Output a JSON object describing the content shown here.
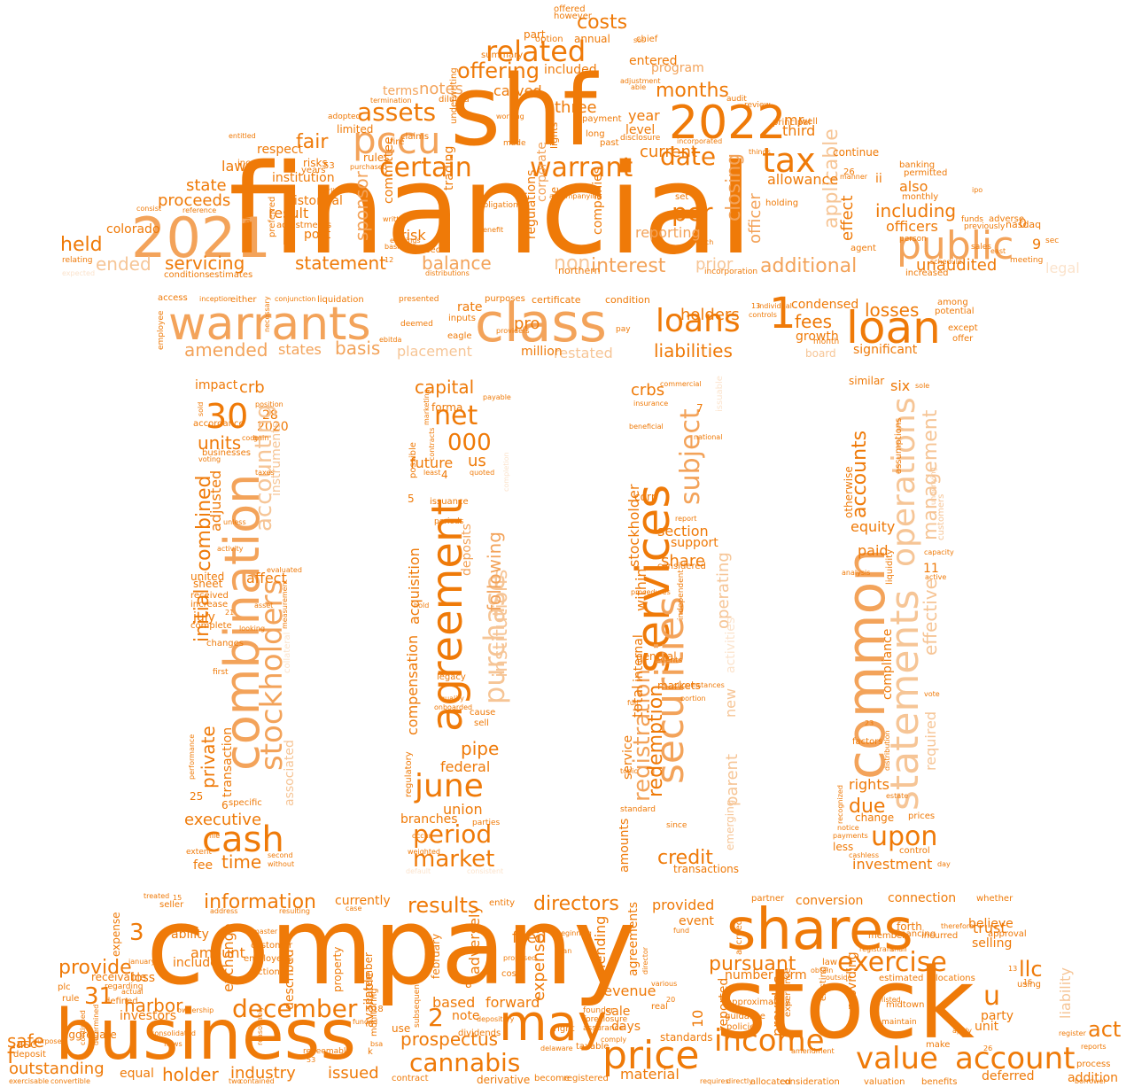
{
  "palette": {
    "deep_orange": "#ef7a08",
    "mid_orange": "#f3a35a",
    "light_orange": "#f6c596",
    "pale_orange": "#fbe3cc",
    "background": "#ffffff"
  },
  "shape": "bank building (roof, entablature, four columns, base)",
  "words": {
    "financial": "financial",
    "shf": "shf",
    "company": "company",
    "stock": "stock",
    "business": "business",
    "warrants": "warrants",
    "class": "class",
    "loan": "loan",
    "loans": "loans",
    "one_numeral": "1",
    "y2021": "2021",
    "y2022": "2022",
    "pccu": "pccu",
    "public": "public",
    "related": "related",
    "tax": "tax",
    "certain": "certain",
    "warrant": "warrant",
    "assets": "assets",
    "date": "date",
    "per": "per",
    "offering": "offering",
    "costs": "costs",
    "months": "months",
    "including": "including",
    "closing": "closing",
    "statement": "statement",
    "servicing": "servicing",
    "held": "held",
    "ended": "ended",
    "balance": "balance",
    "interest": "interest",
    "additional": "additional",
    "non": "non",
    "unaudited": "unaudited",
    "combination": "combination",
    "stockholders": "stockholders",
    "cash": "cash",
    "common": "common",
    "statements": "statements",
    "operations": "operations",
    "upon": "upon",
    "agreement": "agreement",
    "purchase": "purchase",
    "june": "june",
    "period": "period",
    "market": "market",
    "net": "net",
    "n000": "000",
    "services": "services",
    "securities": "securities",
    "subject": "subject",
    "registration": "registration",
    "shares": "shares",
    "may": "may",
    "price": "price",
    "income": "income",
    "value": "value",
    "account": "account",
    "exercise": "exercise",
    "december": "december",
    "cannabis": "cannabis",
    "information": "information",
    "results": "results",
    "directors": "directors",
    "provide": "provide",
    "harbor": "harbor",
    "safe": "safe",
    "outstanding": "outstanding",
    "holder": "holder",
    "industry": "industry",
    "issued": "issued",
    "prospectus": "prospectus",
    "pursuant": "pursuant",
    "llc": "llc",
    "u": "u",
    "act": "act",
    "trust": "trust",
    "n30": "30",
    "n31": "31",
    "n3": "3",
    "n2": "2",
    "crb": "crb",
    "crbs": "crbs",
    "capital": "capital",
    "accounts": "accounts",
    "management": "management",
    "effective": "effective",
    "required": "required",
    "compliance": "compliance",
    "due": "due",
    "rights": "rights",
    "investment": "investment",
    "equity": "equity",
    "paid": "paid",
    "credit": "credit",
    "redemption": "redemption",
    "share": "share",
    "section": "section",
    "support": "support",
    "operating": "operating",
    "parent": "parent",
    "emerging": "emerging",
    "pipe": "pipe",
    "federal": "federal",
    "union": "union",
    "branches": "branches",
    "future": "future",
    "us": "us",
    "compensation": "compensation",
    "acquisition": "acquisition",
    "institutions": "institutions",
    "following": "following",
    "deposits": "deposits",
    "forma": "forma",
    "combined": "combined",
    "initial": "initial",
    "private": "private",
    "executive": "executive",
    "time": "time",
    "accounting": "accounting",
    "units": "units",
    "impact": "impact",
    "affect": "affect",
    "adjusted": "adjusted",
    "transaction": "transaction",
    "amended": "amended",
    "basis": "basis",
    "states": "states",
    "placement": "placement",
    "restated": "restated",
    "million": "million",
    "holders": "holders",
    "liabilities": "liabilities",
    "losses": "losses",
    "fees": "fees",
    "growth": "growth",
    "condensed": "condensed",
    "significant": "significant",
    "board": "board",
    "proceeds": "proceeds",
    "state": "state",
    "laws": "laws",
    "fair": "fair",
    "sponsor": "sponsor",
    "result": "result",
    "risk": "risk",
    "post": "post",
    "b": "b",
    "institution": "institution",
    "historical": "historical",
    "notes": "notes",
    "terms": "terms",
    "three": "three",
    "carved": "carved",
    "included": "included",
    "entered": "entered",
    "program": "program",
    "year": "year",
    "level": "level",
    "current": "current",
    "third": "third",
    "allowance": "allowance",
    "mr": "mr",
    "also": "also",
    "officers": "officers",
    "officer": "officer",
    "applicable": "applicable",
    "effect": "effect",
    "reporting": "reporting",
    "prior": "prior",
    "legal": "legal",
    "ii": "ii",
    "rate": "rate",
    "pro": "pro",
    "expenses": "expenses",
    "lending": "lending",
    "agreements": "agreements",
    "revenue": "revenue",
    "sale": "sale",
    "days": "days",
    "note": "note",
    "based": "based",
    "forward": "forward",
    "filed": "filed",
    "material": "material",
    "provided": "provided",
    "event": "event",
    "number": "number",
    "form": "form",
    "provides": "provides",
    "providing": "providing",
    "conversion": "conversion",
    "connection": "connection",
    "believe": "believe",
    "selling": "selling",
    "party": "party",
    "unit": "unit",
    "liability": "liability",
    "deferred": "deferred",
    "addition": "addition",
    "amount": "amount",
    "ability": "ability",
    "include": "include",
    "exchange": "exchange",
    "loss": "loss",
    "expense": "expense",
    "investors": "investors",
    "receivable": "receivable",
    "aggregate": "aggregate",
    "equal": "equal",
    "f": "f",
    "asc": "asc",
    "described": "described",
    "currently": "currently",
    "adversely": "adversely",
    "available": "available",
    "standards": "standards",
    "reported": "reported",
    "internal": "internal",
    "within": "within",
    "stockholder": "stockholder",
    "total": "total",
    "service": "service",
    "amounts": "amounts",
    "transactions": "transactions",
    "corp": "corp",
    "new": "new",
    "activities": "activities",
    "six": "six",
    "similar": "similar",
    "otherwise": "otherwise",
    "change": "change",
    "less": "less",
    "n11": "11",
    "n28": "28",
    "n2020": "2020",
    "july": "july",
    "sheet": "sheet",
    "united": "united",
    "accordance": "accordance",
    "businesses": "businesses",
    "specific": "specific",
    "associated": "associated",
    "instruments": "instruments",
    "fee": "fee",
    "n25": "25",
    "n6": "6",
    "n10": "10",
    "n4": "4",
    "n5": "5",
    "n7": "7",
    "regulatory": "regulatory",
    "possible": "possible",
    "issuable": "issuable",
    "independent": "independent",
    "general": "general",
    "markets": "markets",
    "corporate": "corporate",
    "trading": "trading",
    "regulations": "regulations",
    "committee": "committee",
    "limited": "limited",
    "rules": "rules",
    "generally": "generally",
    "colorado": "colorado",
    "inc": "inc",
    "respect": "respect",
    "risks": "risks",
    "years": "years",
    "adjustments": "adjustments",
    "preferred": "preferred",
    "average": "average",
    "companies": "companies",
    "lights": "lights",
    "northern": "northern",
    "continue": "continue",
    "banking": "banking",
    "nasdaq": "nasdaq",
    "holding": "holding",
    "chief": "chief",
    "annual": "annual",
    "part": "part",
    "option": "option",
    "summary": "summary",
    "offered": "offered",
    "however": "however",
    "access": "access",
    "certificate": "certificate",
    "condition": "condition",
    "employee": "employee",
    "eagle": "eagle",
    "pay": "pay",
    "offer": "offer",
    "among": "among",
    "potential": "potential",
    "controls": "controls",
    "individual": "individual",
    "month": "month",
    "purposes": "purposes",
    "providers": "providers",
    "presented": "presented",
    "inputs": "inputs",
    "deemed": "deemed",
    "necessary": "necessary",
    "either": "either",
    "inception": "inception",
    "conjunction": "conjunction",
    "liquidation": "liquidation",
    "ebitda": "ebitda",
    "except": "except",
    "commercial": "commercial",
    "insurance": "insurance",
    "payable": "payable",
    "procedures": "procedures",
    "events": "events",
    "report": "report",
    "considered": "considered",
    "quoted": "quoted",
    "legacy": "legacy",
    "qualify": "qualify",
    "onboarded": "onboarded",
    "cause": "cause",
    "sell": "sell",
    "marketing": "marketing",
    "contracts": "contracts",
    "issuance": "issuance",
    "periods": "periods",
    "least": "least",
    "completion": "completion",
    "hold": "hold",
    "full": "full",
    "portion": "portion",
    "circumstances": "circumstances",
    "beneficial": "beneficial",
    "national": "national",
    "topic": "topic",
    "since": "since",
    "standard": "standard",
    "assumptions": "assumptions",
    "liquidity": "liquidity",
    "analysis": "analysis",
    "capacity": "capacity",
    "active": "active",
    "vote": "vote",
    "factors": "factors",
    "distribution": "distribution",
    "customers": "customers",
    "recognized": "recognized",
    "payments": "payments",
    "notice": "notice",
    "estate": "estate",
    "control": "control",
    "prices": "prices",
    "cashless": "cashless",
    "day": "day",
    "sole": "sole",
    "underlying": "underlying",
    "weighted": "weighted",
    "occur": "occur",
    "parties": "parties",
    "default": "default",
    "consistent": "consistent",
    "second": "second",
    "without": "without",
    "extent": "extent",
    "file": "file",
    "performance": "performance",
    "sold": "sold",
    "code": "code",
    "gain": "gain",
    "position": "position",
    "voting": "voting",
    "taxes": "taxes",
    "unless": "unless",
    "activity": "activity",
    "evaluated": "evaluated",
    "received": "received",
    "increase": "increase",
    "complete": "complete",
    "looking": "looking",
    "first": "first",
    "measurement": "measurement",
    "asset": "asset",
    "collateral": "collateral",
    "changes": "changes",
    "employees": "employees",
    "customer": "customer",
    "master": "master",
    "action": "action",
    "property": "property",
    "september": "september",
    "february": "february",
    "monitoring": "monitoring",
    "subsequent": "subsequent",
    "dividends": "dividends",
    "depository": "depository",
    "proposed": "proposed",
    "cost": "cost",
    "use": "use",
    "derivative": "derivative",
    "become": "become",
    "contract": "contract",
    "registered": "registered",
    "taxable": "taxable",
    "delaware": "delaware",
    "right": "right",
    "founder": "founder",
    "foreclosure": "foreclosure",
    "assurance": "assurance",
    "comply": "comply",
    "real": "real",
    "various": "various",
    "fund": "fund",
    "director": "director",
    "policies": "policies",
    "guidance": "guidance",
    "accrued": "accrued",
    "approximately": "approximately",
    "experience": "experience",
    "amendment": "amendment",
    "consideration": "consideration",
    "valuation": "valuation",
    "benefits": "benefits",
    "allocated": "allocated",
    "requires": "requires",
    "directly": "directly",
    "existing": "existing",
    "estimated": "estimated",
    "midtown": "midtown",
    "maintain": "maintain",
    "allocations": "allocations",
    "make": "make",
    "apply": "apply",
    "using": "using",
    "register": "register",
    "reports": "reports",
    "process": "process",
    "borrower": "borrower",
    "whether": "whether",
    "approval": "approval",
    "partner": "partner",
    "financing": "financing",
    "member": "member",
    "forth": "forth",
    "incurred": "incurred",
    "therefore": "therefore",
    "shall": "shall",
    "registrant": "registrant",
    "obtain": "obtain",
    "law": "law",
    "outside": "outside",
    "listed": "listed",
    "seller": "seller",
    "address": "address",
    "resulting": "resulting",
    "case": "case",
    "entity": "entity",
    "beginning": "beginning",
    "plan": "plan",
    "treated": "treated",
    "plc": "plc",
    "rule": "rule",
    "regarding": "regarding",
    "defined": "defined",
    "actual": "actual",
    "january": "january",
    "purpose": "purpose",
    "consolidated": "consolidated",
    "flows": "flows",
    "determined": "determined",
    "continued": "continued",
    "deposit": "deposit",
    "exercisable": "exercisable",
    "convertible": "convertible",
    "two": "two",
    "contained": "contained",
    "ownership": "ownership",
    "reasonably": "reasonably",
    "funded": "funded",
    "redeemable": "redeemable",
    "bsa": "bsa",
    "k": "k",
    "n8": "8",
    "n9": "9",
    "n0": "0",
    "n18": "18",
    "n20": "20",
    "n53": "53",
    "n26": "26",
    "n12": "12",
    "n13": "13",
    "n16": "16",
    "n15": "15",
    "n23": "23",
    "n21": "21",
    "entitled": "entitled",
    "adopted": "adopted",
    "working": "working",
    "made": "made",
    "fire": "fire",
    "claims": "claims",
    "purchased": "purchased",
    "earlier": "earlier",
    "reference": "reference",
    "consist": "consist",
    "written": "written",
    "relating": "relating",
    "expected": "expected",
    "conditions": "conditions",
    "estimates": "estimates",
    "default_fee": "default",
    "earnings": "earnings",
    "clients": "clients",
    "underwriting": "underwriting",
    "diluted": "diluted",
    "termination": "termination",
    "obligations": "obligations",
    "basic": "basic",
    "benefit": "benefit",
    "distributions": "distributions",
    "accompanying": "accompanying",
    "past": "past",
    "co": "co",
    "payment": "payment",
    "long": "long",
    "able": "able",
    "adjustment": "adjustment",
    "audit": "audit",
    "review": "review",
    "incorporated": "incorporated",
    "disclosure": "disclosure",
    "things": "things",
    "principal": "principal",
    "funds": "funds",
    "previously": "previously",
    "meeting": "meeting",
    "sales": "sales",
    "east": "east",
    "sec": "sec",
    "ipo": "ipo",
    "adverse": "adverse",
    "permitted": "permitted",
    "manner": "manner",
    "monthly": "monthly",
    "agent": "agent",
    "person": "person",
    "schedule": "schedule",
    "increased": "increased",
    "incorporation": "incorporation",
    "march": "march",
    "set": "set",
    "used": "used",
    "well": "well",
    "sos": "sos"
  }
}
